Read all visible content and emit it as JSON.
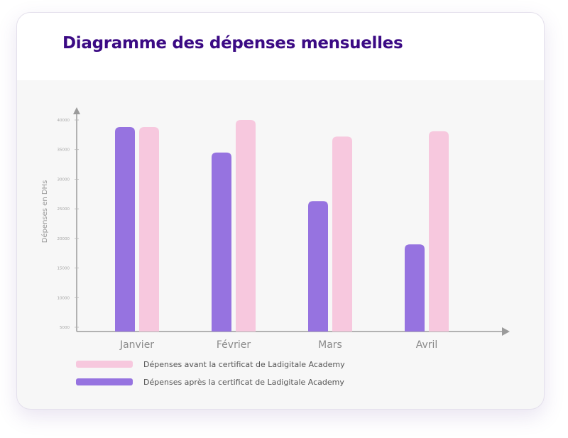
{
  "header": {
    "title": "Diagramme des dépenses mensuelles"
  },
  "colors": {
    "title": "#3b0a84",
    "after": "#9673e0",
    "before": "#f7c8de",
    "axis": "#9b9b9b"
  },
  "chart_data": {
    "type": "bar",
    "title": "Diagramme des dépenses mensuelles",
    "xlabel": "",
    "ylabel": "Dépenses en DHs",
    "categories": [
      "Janvier",
      "Février",
      "Mars",
      "Avril"
    ],
    "series": [
      {
        "name": "Dépenses après la certificat de Ladigitale Academy",
        "key": "after",
        "values": [
          38800,
          34500,
          26300,
          19000
        ]
      },
      {
        "name": "Dépenses avant la certificat de Ladigitale Academy",
        "key": "before",
        "values": [
          38800,
          40000,
          37200,
          38100
        ]
      }
    ],
    "yticks": [
      5000,
      10000,
      15000,
      20000,
      25000,
      30000,
      35000,
      40000
    ],
    "ylim": [
      1500,
      40000
    ],
    "grid": false,
    "legend": {
      "placement": "bottom-left",
      "entries": [
        {
          "label": "Dépenses avant la certificat de Ladigitale Academy",
          "key": "before"
        },
        {
          "label": "Dépenses après la certificat de Ladigitale Academy",
          "key": "after"
        }
      ]
    }
  }
}
